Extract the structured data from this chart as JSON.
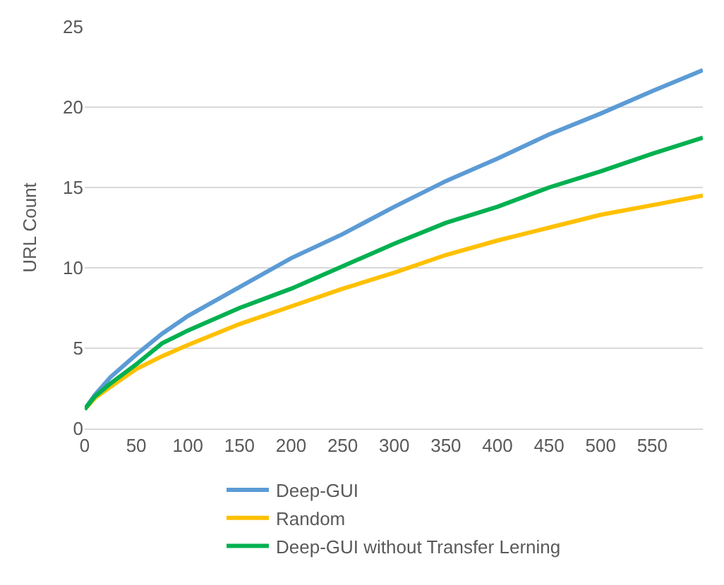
{
  "chart_data": {
    "type": "line",
    "ylabel": "URL Count",
    "xlim": [
      0,
      599
    ],
    "xticks": [
      0,
      50,
      100,
      150,
      200,
      250,
      300,
      350,
      400,
      450,
      500,
      550
    ],
    "ylim": [
      0,
      25
    ],
    "yticks": [
      0,
      5,
      10,
      15,
      20,
      25
    ],
    "grid": "y",
    "legend": "bottom",
    "marker": "none",
    "line_style": "solid",
    "x": [
      0,
      10,
      25,
      50,
      75,
      100,
      150,
      200,
      250,
      300,
      350,
      400,
      450,
      500,
      550,
      599
    ],
    "series": [
      {
        "name": "Deep-GUI",
        "color": "#5b9bd5",
        "values": [
          1.2,
          2.1,
          3.2,
          4.6,
          5.9,
          7.0,
          8.8,
          10.6,
          12.1,
          13.8,
          15.4,
          16.8,
          18.3,
          19.6,
          21.0,
          22.3
        ]
      },
      {
        "name": "Random",
        "color": "#ffc000",
        "values": [
          1.2,
          1.9,
          2.6,
          3.7,
          4.5,
          5.2,
          6.5,
          7.6,
          8.7,
          9.7,
          10.8,
          11.7,
          12.5,
          13.3,
          13.9,
          14.5
        ]
      },
      {
        "name": "Deep-GUI without Transfer Lerning",
        "color": "#00b050",
        "values": [
          1.2,
          2.0,
          2.8,
          4.0,
          5.3,
          6.1,
          7.5,
          8.7,
          10.1,
          11.5,
          12.8,
          13.8,
          15.0,
          16.0,
          17.1,
          18.1
        ]
      }
    ]
  }
}
